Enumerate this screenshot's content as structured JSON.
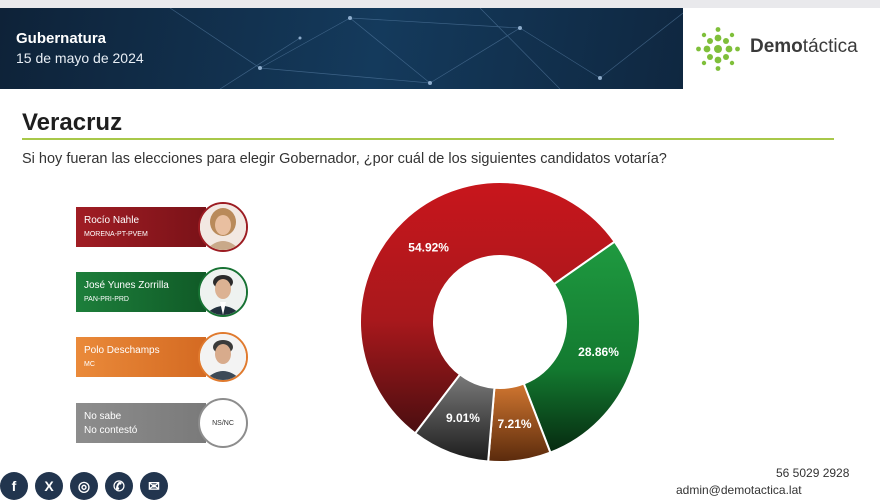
{
  "header": {
    "title": "Gubernatura",
    "date": "15 de mayo de 2024",
    "logo_prefix": "Demo",
    "logo_suffix": "táctica"
  },
  "state": "Veracruz",
  "question": "Si hoy fueran las elecciones para elegir Gobernador, ¿por cuál de los siguientes candidatos votaría?",
  "candidates": [
    {
      "name": "Rocío Nahle",
      "party": "MORENA-PT-PVEM",
      "color": "#9c1c22"
    },
    {
      "name": "José Yunes Zorrilla",
      "party": "PAN-PRI-PRD",
      "color": "#177233"
    },
    {
      "name": "Polo Deschamps",
      "party": "MC",
      "color": "#e07a2e"
    },
    {
      "name": "No sabe",
      "party": "No contestó",
      "color": "#8d8d8d",
      "badge": "NS/NC"
    }
  ],
  "chart_data": {
    "type": "pie",
    "donut": true,
    "slices": [
      {
        "label": "Rocío Nahle",
        "value": 54.92,
        "display": "54.92%",
        "color": "#c01a1e"
      },
      {
        "label": "José Yunes Zorrilla",
        "value": 28.86,
        "display": "28.86%",
        "color": "#1a8c3a"
      },
      {
        "label": "Polo Deschamps",
        "value": 7.21,
        "display": "7.21%",
        "color": "#c8692a"
      },
      {
        "label": "NS/NC",
        "value": 9.01,
        "display": "9.01%",
        "color": "#5a5a5a"
      }
    ]
  },
  "footer": {
    "phone": "56 5029 2928",
    "email": "admin@demotactica.lat"
  },
  "social": [
    "facebook-icon",
    "x-icon",
    "instagram-icon",
    "whatsapp-icon",
    "mail-icon"
  ]
}
